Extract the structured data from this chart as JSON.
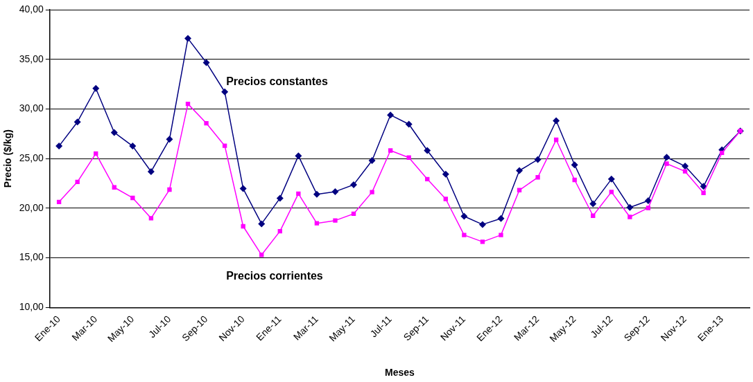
{
  "chart_data": {
    "type": "line",
    "xlabel": "Meses",
    "ylabel": "Precio ($/kg)",
    "categories": [
      "Ene-10",
      null,
      "Mar-10",
      null,
      "May-10",
      null,
      "Jul-10",
      null,
      "Sep-10",
      null,
      "Nov-10",
      null,
      "Ene-11",
      null,
      "Mar-11",
      null,
      "May-11",
      null,
      "Jul-11",
      null,
      "Sep-11",
      null,
      "Nov-11",
      null,
      "Ene-12",
      null,
      "Mar-12",
      null,
      "May-12",
      null,
      "Jul-12",
      null,
      "Sep-12",
      null,
      "Nov-12",
      null,
      "Ene-13",
      null
    ],
    "series": [
      {
        "name": "Precios constantes",
        "color": "#000080",
        "marker": "diamond",
        "values": [
          26.26,
          28.69,
          32.07,
          27.63,
          26.26,
          23.69,
          26.94,
          37.1,
          34.67,
          31.72,
          21.97,
          18.43,
          21.01,
          25.28,
          21.41,
          21.67,
          22.37,
          24.8,
          29.39,
          28.46,
          25.81,
          23.43,
          19.19,
          18.36,
          18.96,
          23.79,
          24.9,
          28.81,
          24.37,
          20.45,
          22.93,
          20.08,
          20.76,
          25.13,
          24.24,
          22.2,
          25.88,
          27.78
        ]
      },
      {
        "name": "Precios corrientes",
        "color": "#ff00ff",
        "marker": "square",
        "values": [
          20.63,
          22.65,
          25.51,
          22.1,
          21.04,
          18.99,
          21.87,
          30.51,
          28.56,
          26.29,
          18.18,
          15.3,
          17.68,
          21.46,
          18.48,
          18.76,
          19.44,
          21.62,
          25.81,
          25.1,
          22.93,
          20.93,
          17.3,
          16.62,
          17.3,
          21.82,
          23.11,
          26.89,
          22.85,
          19.24,
          21.64,
          19.12,
          20.03,
          24.49,
          23.71,
          21.54,
          25.58,
          27.78
        ]
      }
    ],
    "ylim": [
      10,
      40
    ],
    "yticks": [
      {
        "value": 10,
        "label": "10,00"
      },
      {
        "value": 15,
        "label": "15,00"
      },
      {
        "value": 20,
        "label": "20,00"
      },
      {
        "value": 25,
        "label": "25,00"
      },
      {
        "value": 30,
        "label": "30,00"
      },
      {
        "value": 35,
        "label": "35,00"
      },
      {
        "value": 40,
        "label": "40,00"
      }
    ],
    "grid": "y",
    "legend": false
  }
}
